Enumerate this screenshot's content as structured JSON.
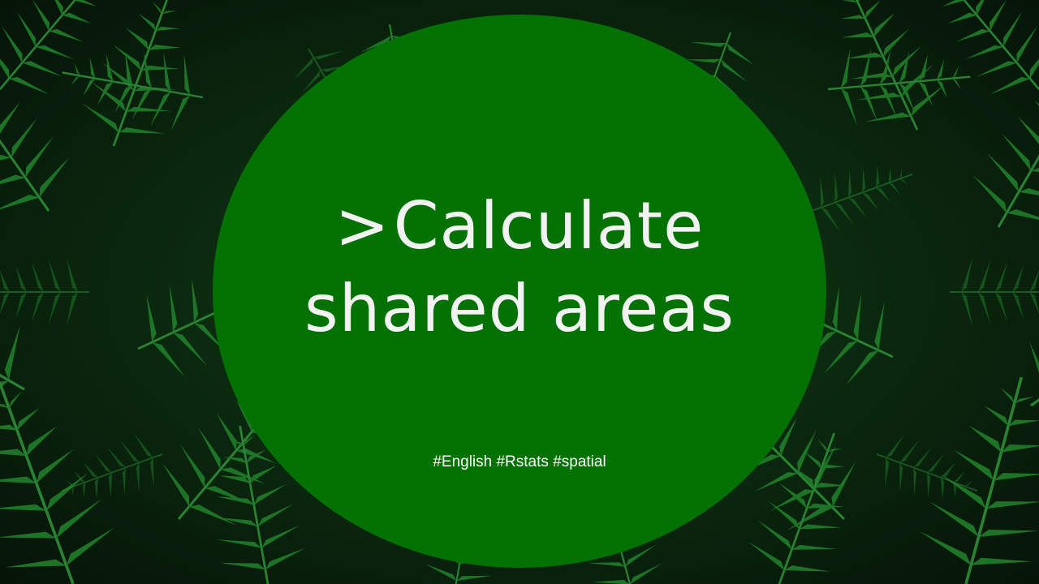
{
  "slide": {
    "title_prompt": ">",
    "title_line1": "Calculate",
    "title_line2": "shared areas",
    "hashtags": "#English #Rstats #spatial"
  },
  "colors": {
    "circle": "#037203",
    "title_text": "#f2f2f2",
    "tags_text": "#ffffff",
    "foliage_dark": "#0b2a0f",
    "foliage_leaf": "#1f7a2a"
  },
  "background": {
    "icon": "fern-foliage-photo"
  }
}
